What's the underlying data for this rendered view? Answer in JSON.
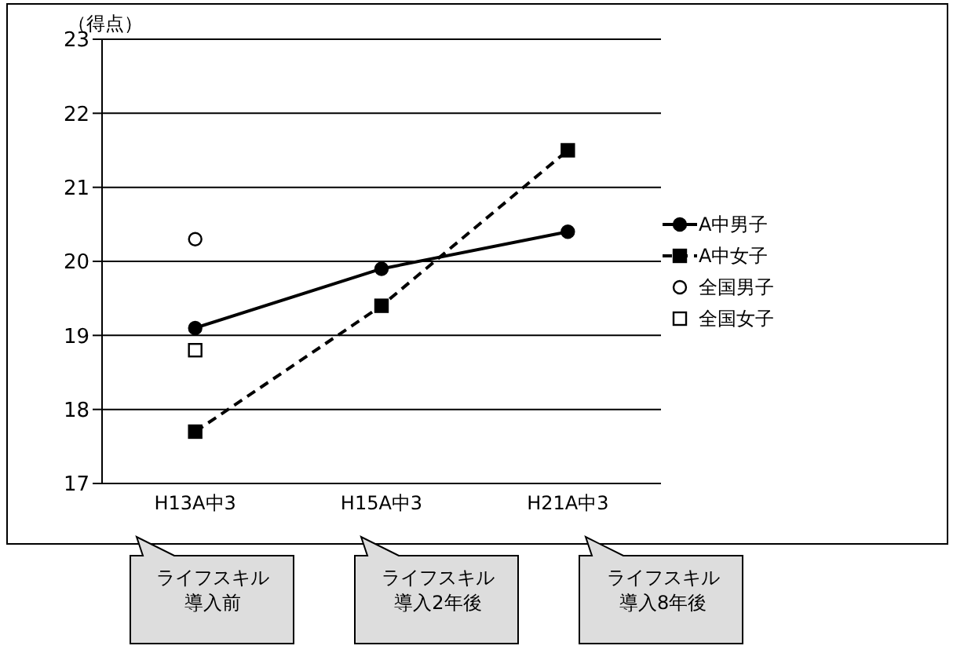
{
  "chart_data": {
    "type": "line",
    "ylabel": "（得点）",
    "categories": [
      "H13A中3",
      "H15A中3",
      "H21A中3"
    ],
    "series": [
      {
        "name": "A中男子",
        "color": "#000000",
        "values": [
          19.1,
          19.9,
          20.4
        ],
        "marker": "circle",
        "line_style": "solid"
      },
      {
        "name": "A中女子",
        "color": "#000000",
        "values": [
          17.7,
          19.4,
          21.5
        ],
        "marker": "square",
        "line_style": "dashed"
      },
      {
        "name": "全国男子",
        "type": "scatter",
        "color": "#000000",
        "values": [
          20.3,
          null,
          null
        ],
        "marker": "circle"
      },
      {
        "name": "全国女子",
        "type": "scatter",
        "color": "#000000",
        "values": [
          18.8,
          null,
          null
        ],
        "marker": "square"
      }
    ],
    "ylim": [
      17,
      23
    ],
    "yticks": [
      17,
      18,
      19,
      20,
      21,
      22,
      23
    ],
    "grid": "y",
    "legend": "right",
    "annotations": [
      "ライフスキル導入前",
      "ライフスキル導入2年後",
      "ライフスキル導入8年後"
    ]
  }
}
